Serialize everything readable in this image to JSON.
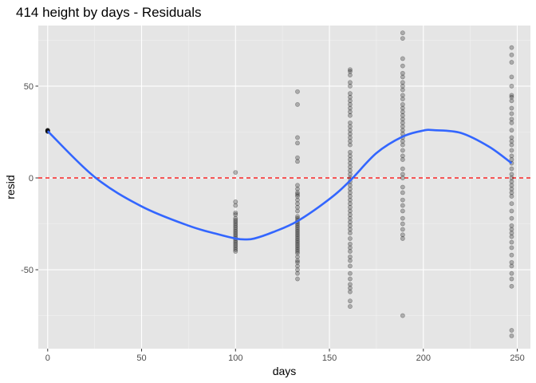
{
  "chart_data": {
    "type": "scatter",
    "title": "414 height by days - Residuals",
    "xlabel": "days",
    "ylabel": "resid",
    "xlim": [
      -5,
      257
    ],
    "ylim": [
      -93,
      83
    ],
    "x_ticks": [
      0,
      50,
      100,
      150,
      200,
      250
    ],
    "y_ticks": [
      -50,
      0,
      50
    ],
    "x_tick_labels": [
      "0",
      "50",
      "100",
      "150",
      "200",
      "250"
    ],
    "y_tick_labels": [
      "-50",
      "0",
      "50"
    ],
    "grid": true,
    "background": "#e5e5e5",
    "point_color": "#000000",
    "smooth_color": "#3366ff",
    "reference_line": {
      "y": 0,
      "style": "dashed",
      "color": "#ff0000"
    },
    "points": [
      {
        "x": 0,
        "y": [
          25.5,
          25.8,
          26,
          25.2,
          25.6,
          25.9,
          25.4,
          25.7
        ]
      },
      {
        "x": 100,
        "y": [
          3,
          -13,
          -15,
          -19,
          -20,
          -22,
          -23,
          -24,
          -25,
          -26,
          -27,
          -28,
          -29,
          -30,
          -31,
          -32,
          -33,
          -34,
          -35,
          -36,
          -37,
          -38,
          -39,
          -40
        ]
      },
      {
        "x": 133,
        "y": [
          47,
          40,
          22,
          19,
          11,
          9,
          -4,
          -6,
          -8,
          -9,
          -10,
          -12,
          -14,
          -16,
          -18,
          -21,
          -22,
          -23,
          -24,
          -25,
          -26,
          -27,
          -28,
          -29,
          -30,
          -31,
          -32,
          -33,
          -34,
          -35,
          -36,
          -37,
          -38,
          -39,
          -40,
          -41,
          -43,
          -45,
          -46,
          -48,
          -50,
          -52,
          -55
        ]
      },
      {
        "x": 161,
        "y": [
          59,
          58,
          56,
          52,
          50,
          46,
          44,
          42,
          40,
          38,
          36,
          34,
          30,
          28,
          26,
          24,
          22,
          20,
          18,
          14,
          12,
          10,
          8,
          6,
          4,
          2,
          0,
          -2,
          -4,
          -6,
          -8,
          -10,
          -12,
          -14,
          -16,
          -18,
          -20,
          -22,
          -24,
          -26,
          -28,
          -30,
          -33,
          -36,
          -38,
          -40,
          -43,
          -45,
          -48,
          -52,
          -55,
          -58,
          -60,
          -62,
          -67,
          -70
        ]
      },
      {
        "x": 189,
        "y": [
          79,
          76,
          65,
          61,
          57,
          55,
          52,
          50,
          48,
          45,
          43,
          40,
          38,
          36,
          34,
          32,
          30,
          28,
          26,
          24,
          22,
          20,
          18,
          15,
          12,
          10,
          5,
          2,
          0,
          -5,
          -8,
          -12,
          -15,
          -18,
          -22,
          -25,
          -28,
          -31,
          -33,
          -75
        ]
      },
      {
        "x": 247,
        "y": [
          71,
          67,
          63,
          55,
          50,
          45,
          44,
          42,
          38,
          35,
          32,
          30,
          26,
          22,
          20,
          18,
          15,
          12,
          10,
          8,
          5,
          2,
          0,
          -2,
          -4,
          -6,
          -8,
          -10,
          -14,
          -18,
          -22,
          -26,
          -28,
          -30,
          -32,
          -35,
          -38,
          -42,
          -46,
          -48,
          -52,
          -55,
          -59,
          -83,
          -86
        ]
      }
    ],
    "smooth_curve": {
      "x": [
        0,
        25,
        50,
        75,
        90,
        100,
        105,
        110,
        120,
        133,
        150,
        161,
        175,
        189,
        200,
        206,
        220,
        235,
        247
      ],
      "y": [
        25.5,
        0.5,
        -15.5,
        -26,
        -30.5,
        -33,
        -33.5,
        -33,
        -29.5,
        -23.5,
        -11.5,
        -1.5,
        13.5,
        22.5,
        25.8,
        26,
        24.5,
        17,
        8
      ]
    }
  }
}
